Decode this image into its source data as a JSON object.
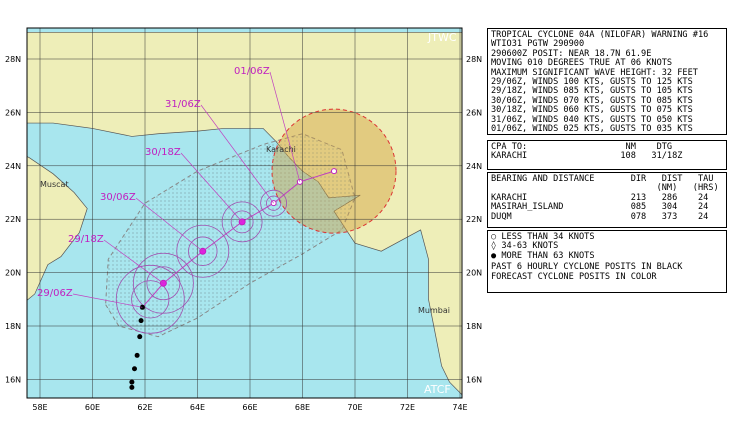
{
  "header": {
    "agency": "JTWC",
    "system": "ATCF"
  },
  "map": {
    "lat_labels": [
      "28N",
      "26N",
      "24N",
      "22N",
      "20N",
      "18N",
      "16N"
    ],
    "lon_labels": [
      "58E",
      "60E",
      "62E",
      "64E",
      "66E",
      "68E",
      "70E",
      "72E",
      "74E"
    ],
    "places": [
      "Muscat",
      "Karachi",
      "Mumbai"
    ],
    "forecast_labels": [
      "29/06Z",
      "29/18Z",
      "30/06Z",
      "30/18Z",
      "31/06Z",
      "01/06Z"
    ]
  },
  "warning": {
    "lines": [
      "TROPICAL CYCLONE 04A (NILOFAR) WARNING #16",
      "WTIO31 PGTW 290900",
      "290600Z POSIT: NEAR 18.7N 61.9E",
      "MOVING 010 DEGREES TRUE AT 06 KNOTS",
      "MAXIMUM SIGNIFICANT WAVE HEIGHT: 32 FEET",
      "29/06Z, WINDS 100 KTS, GUSTS TO 125 KTS",
      "29/18Z, WINDS 085 KTS, GUSTS TO 105 KTS",
      "30/06Z, WINDS 070 KTS, GUSTS TO 085 KTS",
      "30/18Z, WINDS 060 KTS, GUSTS TO 075 KTS",
      "31/06Z, WINDS 040 KTS, GUSTS TO 050 KTS",
      "01/06Z, WINDS 025 KTS, GUSTS TO 035 KTS"
    ]
  },
  "cpa": {
    "lines": [
      "CPA TO:                   NM    DTG",
      "KARACHI                  108   31/18Z"
    ]
  },
  "bearing": {
    "lines": [
      "BEARING AND DISTANCE       DIR   DIST   TAU",
      "                                (NM)   (HRS)",
      "KARACHI                    213   286    24",
      "MASIRAH_ISLAND             085   304    24",
      "DUQM                       078   373    24"
    ]
  },
  "legend": {
    "lines": [
      "LESS THAN 34 KNOTS",
      "34-63 KNOTS",
      "MORE THAN 63 KNOTS",
      "PAST 6 HOURLY CYCLONE POSITS IN BLACK",
      "FORECAST CYCLONE POSITS IN COLOR"
    ]
  }
}
